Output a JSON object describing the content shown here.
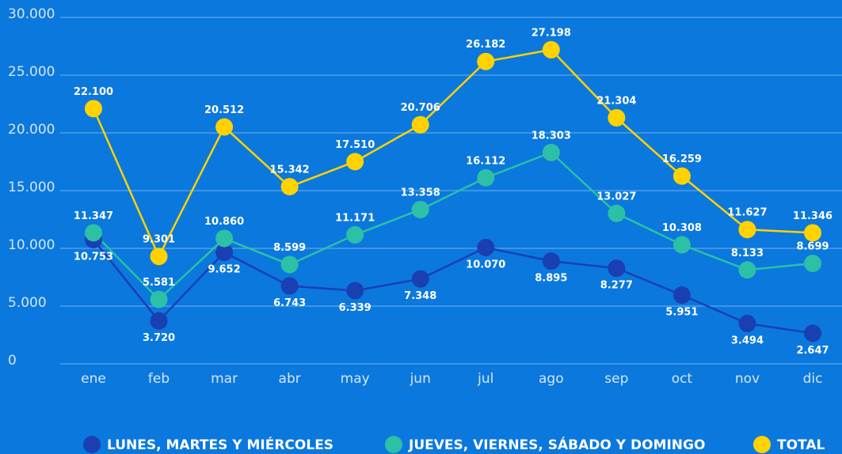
{
  "chart_data": {
    "type": "line",
    "categories": [
      "ene",
      "feb",
      "mar",
      "abr",
      "may",
      "jun",
      "jul",
      "ago",
      "sep",
      "oct",
      "nov",
      "dic"
    ],
    "series": [
      {
        "name": "LUNES, MARTES Y MIÉRCOLES",
        "color": "#1a3fb3",
        "values": [
          10753,
          3720,
          9652,
          6743,
          6339,
          7348,
          10070,
          8895,
          8277,
          5951,
          3494,
          2647
        ],
        "value_labels": [
          "10.753",
          "3.720",
          "9.652",
          "6.743",
          "6.339",
          "7.348",
          "10.070",
          "8.895",
          "8.277",
          "5.951",
          "3.494",
          "2.647"
        ]
      },
      {
        "name": "JUEVES, VIERNES, SÁBADO Y DOMINGO",
        "color": "#2cc0a6",
        "values": [
          11347,
          5581,
          10860,
          8599,
          11171,
          13358,
          16112,
          18303,
          13027,
          10308,
          8133,
          8699
        ],
        "value_labels": [
          "11.347",
          "5.581",
          "10.860",
          "8.599",
          "11.171",
          "13.358",
          "16.112",
          "18.303",
          "13.027",
          "10.308",
          "8.133",
          "8.699"
        ]
      },
      {
        "name": "TOTAL",
        "color": "#ffd200",
        "values": [
          22100,
          9301,
          20512,
          15342,
          17510,
          20706,
          26182,
          27198,
          21304,
          16259,
          11627,
          11346
        ],
        "value_labels": [
          "22.100",
          "9.301",
          "20.512",
          "15.342",
          "17.510",
          "20.706",
          "26.182",
          "27.198",
          "21.304",
          "16.259",
          "11.627",
          "11.346"
        ]
      }
    ],
    "ylim": [
      0,
      30000
    ],
    "yticks": [
      0,
      {
        "value": 5000,
        "label": "5.000"
      },
      {
        "value": 10000,
        "label": "10.000"
      },
      {
        "value": 15000,
        "label": "15.000"
      },
      {
        "value": 20000,
        "label": "20.000"
      },
      {
        "value": 25000,
        "label": "25.000"
      },
      {
        "value": 30000,
        "label": "30.000"
      }
    ],
    "grid": true,
    "legend": "bottom"
  }
}
